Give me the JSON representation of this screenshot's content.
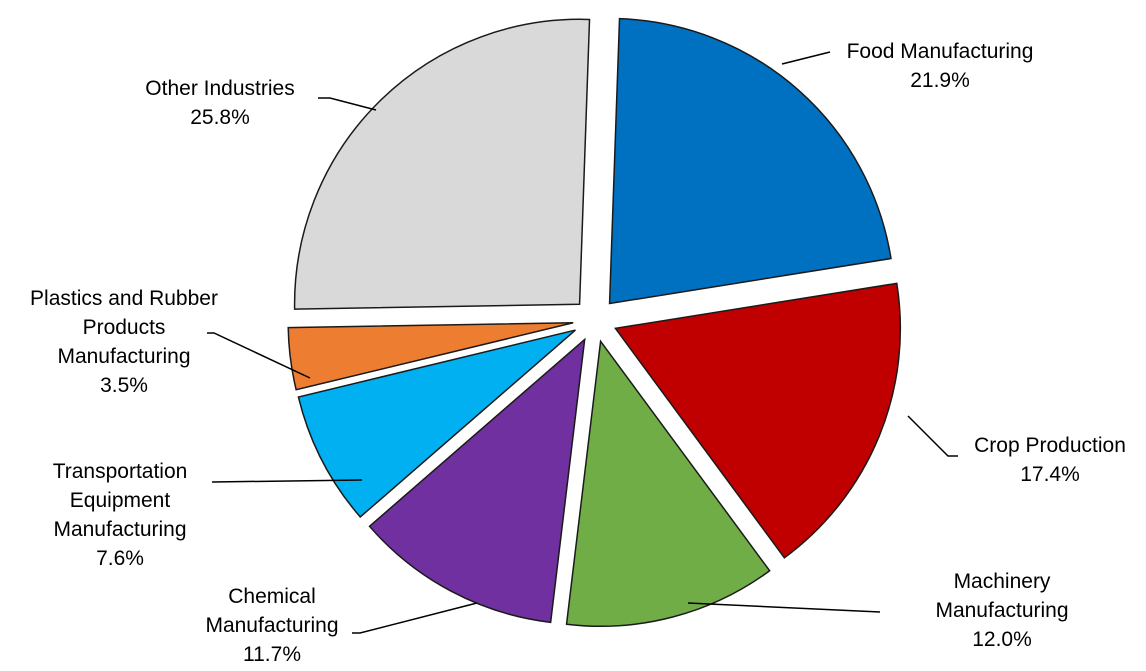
{
  "chart_data": {
    "type": "pie",
    "exploded": true,
    "slices": [
      {
        "label": [
          "Food Manufacturing"
        ],
        "value": 21.9,
        "pct": "21.9%",
        "color": "#0070C0"
      },
      {
        "label": [
          "Crop Production"
        ],
        "value": 17.4,
        "pct": "17.4%",
        "color": "#C00000"
      },
      {
        "label": [
          "Machinery",
          "Manufacturing"
        ],
        "value": 12.0,
        "pct": "12.0%",
        "color": "#70AD47"
      },
      {
        "label": [
          "Chemical",
          "Manufacturing"
        ],
        "value": 11.7,
        "pct": "11.7%",
        "color": "#7030A0"
      },
      {
        "label": [
          "Transportation",
          "Equipment",
          "Manufacturing"
        ],
        "value": 7.6,
        "pct": "7.6%",
        "color": "#00B0F0"
      },
      {
        "label": [
          "Plastics and Rubber",
          "Products",
          "Manufacturing"
        ],
        "value": 3.5,
        "pct": "3.5%",
        "color": "#ED7D31"
      },
      {
        "label": [
          "Other Industries"
        ],
        "value": 25.8,
        "pct": "25.8%",
        "color": "#D9D9D9"
      }
    ]
  }
}
